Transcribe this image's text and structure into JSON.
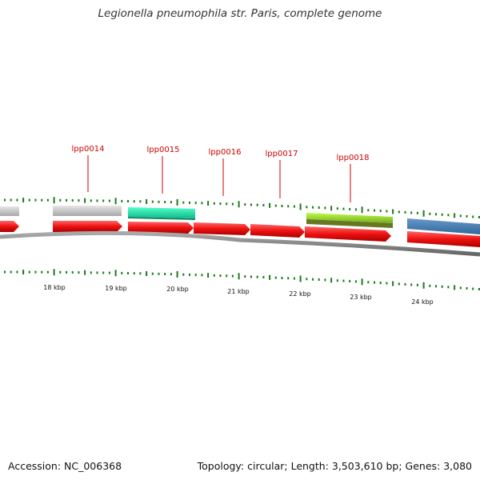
{
  "title": "Legionella pneumophila str. Paris, complete genome",
  "footer": {
    "accession": "Accession: NC_006368",
    "summary": "Topology: circular; Length: 3,503,610 bp; Genes: 3,080"
  },
  "colors": {
    "cds": "#ee1111",
    "gray_gene": "#c6c6c6",
    "cyan_gene": "#22ddaa",
    "lime_gene": "#99dd22",
    "blue_gene": "#4477aa",
    "label": "#cc0000",
    "tick": "#1a7a1a",
    "backbone": "#888888"
  },
  "scale_labels": [
    "18 kbp",
    "19 kbp",
    "20 kbp",
    "21 kbp",
    "22 kbp",
    "23 kbp",
    "24 kbp"
  ],
  "gene_labels": [
    "lpp0014",
    "lpp0015",
    "lpp0016",
    "lpp0017",
    "lpp0018"
  ]
}
